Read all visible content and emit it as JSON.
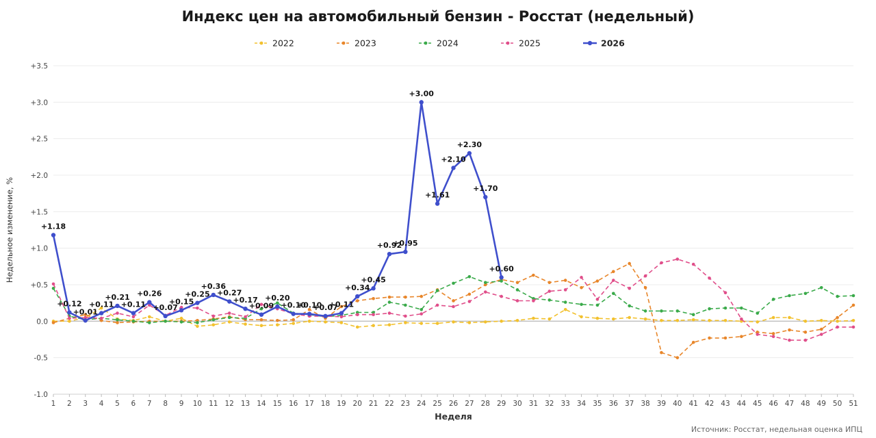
{
  "source": "Источник: Росстат, недельная оценка ИПЦ",
  "chart_data": {
    "type": "line",
    "title": "Индекс цен на автомобильный бензин - Росстат (недельный)",
    "xlabel": "Неделя",
    "ylabel": "Недельное изменение, %",
    "xlim": [
      1,
      51
    ],
    "ylim": [
      -1.0,
      3.5
    ],
    "yticks": [
      "-1.0",
      "-0.5",
      "0.0",
      "+0.5",
      "+1.0",
      "+1.5",
      "+2.0",
      "+2.5",
      "+3.0",
      "+3.5"
    ],
    "grid": true,
    "legend_position": "top",
    "series": [
      {
        "name": "2022",
        "color": "#f2c12e",
        "dashed": true,
        "bold": false,
        "x": [
          1,
          2,
          3,
          4,
          5,
          6,
          7,
          8,
          9,
          10,
          11,
          12,
          13,
          14,
          15,
          16,
          17,
          18,
          19,
          20,
          21,
          22,
          23,
          24,
          25,
          26,
          27,
          28,
          29,
          30,
          31,
          32,
          33,
          34,
          35,
          36,
          37,
          38,
          39,
          40,
          41,
          42,
          43,
          44,
          45,
          46,
          47,
          48,
          49,
          50,
          51
        ],
        "values": [
          0.0,
          0.0,
          0.05,
          0.18,
          0.03,
          0.01,
          0.06,
          0.0,
          0.04,
          -0.07,
          -0.05,
          -0.01,
          -0.04,
          -0.06,
          -0.05,
          -0.03,
          0.0,
          -0.01,
          -0.02,
          -0.08,
          -0.06,
          -0.05,
          -0.02,
          -0.03,
          -0.03,
          -0.01,
          -0.02,
          -0.01,
          0.0,
          0.01,
          0.04,
          0.03,
          0.16,
          0.06,
          0.04,
          0.03,
          0.05,
          0.03,
          0.01,
          0.01,
          0.02,
          0.01,
          0.01,
          0.0,
          -0.01,
          0.05,
          0.05,
          0.0,
          0.01,
          0.0,
          0.01
        ]
      },
      {
        "name": "2023",
        "color": "#e8862a",
        "dashed": true,
        "bold": false,
        "x": [
          1,
          2,
          3,
          4,
          5,
          6,
          7,
          8,
          9,
          10,
          11,
          12,
          13,
          14,
          15,
          16,
          17,
          18,
          19,
          20,
          21,
          22,
          23,
          24,
          25,
          26,
          27,
          28,
          29,
          30,
          31,
          32,
          33,
          34,
          35,
          36,
          37,
          38,
          39,
          40,
          41,
          42,
          43,
          44,
          45,
          46,
          47,
          48,
          49,
          50,
          51
        ],
        "values": [
          -0.02,
          0.04,
          0.09,
          0.01,
          -0.02,
          -0.01,
          0.0,
          0.0,
          0.0,
          0.01,
          0.03,
          0.06,
          0.02,
          0.02,
          0.01,
          0.02,
          0.16,
          0.04,
          0.2,
          0.28,
          0.31,
          0.33,
          0.33,
          0.34,
          0.43,
          0.28,
          0.37,
          0.5,
          0.57,
          0.53,
          0.63,
          0.53,
          0.56,
          0.46,
          0.55,
          0.68,
          0.79,
          0.46,
          -0.43,
          -0.5,
          -0.29,
          -0.23,
          -0.23,
          -0.21,
          -0.15,
          -0.17,
          -0.12,
          -0.15,
          -0.11,
          0.05,
          0.22
        ]
      },
      {
        "name": "2024",
        "color": "#3aaa4a",
        "dashed": true,
        "bold": false,
        "x": [
          1,
          2,
          3,
          4,
          5,
          6,
          7,
          8,
          9,
          10,
          11,
          12,
          13,
          14,
          15,
          16,
          17,
          18,
          19,
          20,
          21,
          22,
          23,
          24,
          25,
          26,
          27,
          28,
          29,
          30,
          31,
          32,
          33,
          34,
          35,
          36,
          37,
          38,
          39,
          40,
          41,
          42,
          43,
          44,
          45,
          46,
          47,
          48,
          49,
          50,
          51
        ],
        "values": [
          0.45,
          0.07,
          0.02,
          0.04,
          0.02,
          0.0,
          -0.02,
          0.0,
          -0.01,
          -0.02,
          0.02,
          0.05,
          0.04,
          0.17,
          0.25,
          0.11,
          0.09,
          0.06,
          0.08,
          0.12,
          0.12,
          0.26,
          0.22,
          0.16,
          0.42,
          0.52,
          0.61,
          0.53,
          0.55,
          0.43,
          0.31,
          0.29,
          0.26,
          0.23,
          0.22,
          0.38,
          0.21,
          0.14,
          0.14,
          0.14,
          0.09,
          0.17,
          0.18,
          0.18,
          0.11,
          0.3,
          0.35,
          0.38,
          0.46,
          0.34,
          0.35
        ]
      },
      {
        "name": "2025",
        "color": "#e04e8a",
        "dashed": true,
        "bold": false,
        "x": [
          1,
          2,
          3,
          4,
          5,
          6,
          7,
          8,
          9,
          10,
          11,
          12,
          13,
          14,
          15,
          16,
          17,
          18,
          19,
          20,
          21,
          22,
          23,
          24,
          25,
          26,
          27,
          28,
          29,
          30,
          31,
          32,
          33,
          34,
          35,
          36,
          37,
          38,
          39,
          40,
          41,
          42,
          43,
          44,
          45,
          46,
          47,
          48,
          49,
          50,
          51
        ],
        "values": [
          0.51,
          0.04,
          0.05,
          0.04,
          0.11,
          0.06,
          0.22,
          0.08,
          0.19,
          0.18,
          0.07,
          0.11,
          0.06,
          0.23,
          0.17,
          0.1,
          0.07,
          0.07,
          0.06,
          0.09,
          0.09,
          0.11,
          0.07,
          0.1,
          0.22,
          0.2,
          0.27,
          0.4,
          0.34,
          0.28,
          0.28,
          0.41,
          0.43,
          0.6,
          0.3,
          0.56,
          0.45,
          0.62,
          0.8,
          0.85,
          0.78,
          0.59,
          0.39,
          0.03,
          -0.18,
          -0.21,
          -0.26,
          -0.26,
          -0.18,
          -0.08,
          -0.08
        ]
      },
      {
        "name": "2026",
        "color": "#3f4fcc",
        "dashed": false,
        "bold": true,
        "x": [
          1,
          2,
          3,
          4,
          5,
          6,
          7,
          8,
          9,
          10,
          11,
          12,
          13,
          14,
          15,
          16,
          17,
          18,
          19,
          20,
          21,
          22,
          23,
          24,
          25,
          26,
          27,
          28,
          29
        ],
        "values": [
          1.18,
          0.12,
          0.01,
          0.11,
          0.21,
          0.11,
          0.26,
          0.07,
          0.15,
          0.25,
          0.36,
          0.27,
          0.17,
          0.09,
          0.2,
          0.1,
          0.1,
          0.07,
          0.11,
          0.34,
          0.45,
          0.92,
          0.95,
          3.0,
          1.61,
          2.1,
          2.3,
          1.7,
          0.6
        ],
        "data_labels": [
          "+1.18",
          "+0.12",
          "+0.01",
          "+0.11",
          "+0.21",
          "+0.11",
          "+0.26",
          "+0.07",
          "+0.15",
          "+0.25",
          "+0.36",
          "+0.27",
          "+0.17",
          "+0.09",
          "+0.20",
          "+0.10",
          "+0.10",
          "+0.07",
          "+0.11",
          "+0.34",
          "+0.45",
          "+0.92",
          "+0.95",
          "+3.00",
          "+1.61",
          "+2.10",
          "+2.30",
          "+1.70",
          "+0.60"
        ]
      }
    ]
  }
}
